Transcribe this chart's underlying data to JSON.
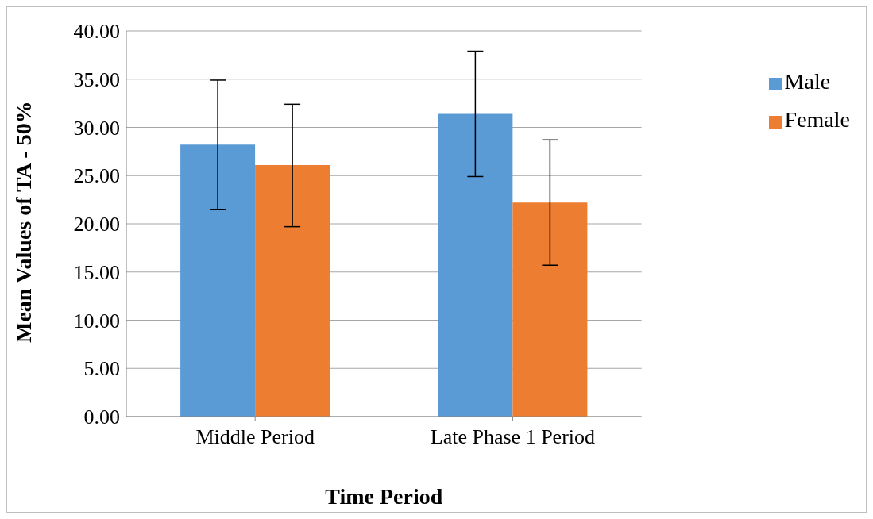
{
  "chart_data": {
    "type": "bar",
    "xlabel": "Time Period",
    "ylabel": "Mean Values of TA - 50%",
    "categories": [
      "Middle Period",
      "Late Phase 1 Period"
    ],
    "series": [
      {
        "name": "Male",
        "color": "#5b9bd5",
        "values": [
          28.2,
          31.4
        ],
        "errors": [
          [
            21.5,
            34.9
          ],
          [
            24.9,
            37.9
          ]
        ]
      },
      {
        "name": "Female",
        "color": "#ed7d31",
        "values": [
          26.1,
          22.2
        ],
        "errors": [
          [
            19.7,
            32.4
          ],
          [
            15.7,
            28.7
          ]
        ]
      }
    ],
    "ylim": [
      0,
      40
    ],
    "yticks": [
      {
        "value": 0,
        "label": "0.00"
      },
      {
        "value": 5,
        "label": "5.00"
      },
      {
        "value": 10,
        "label": "10.00"
      },
      {
        "value": 15,
        "label": "15.00"
      },
      {
        "value": 20,
        "label": "20.00"
      },
      {
        "value": 25,
        "label": "25.00"
      },
      {
        "value": 30,
        "label": "30.00"
      },
      {
        "value": 35,
        "label": "35.00"
      },
      {
        "value": 40,
        "label": "40.00"
      }
    ],
    "grid": "y",
    "legend": "right"
  }
}
